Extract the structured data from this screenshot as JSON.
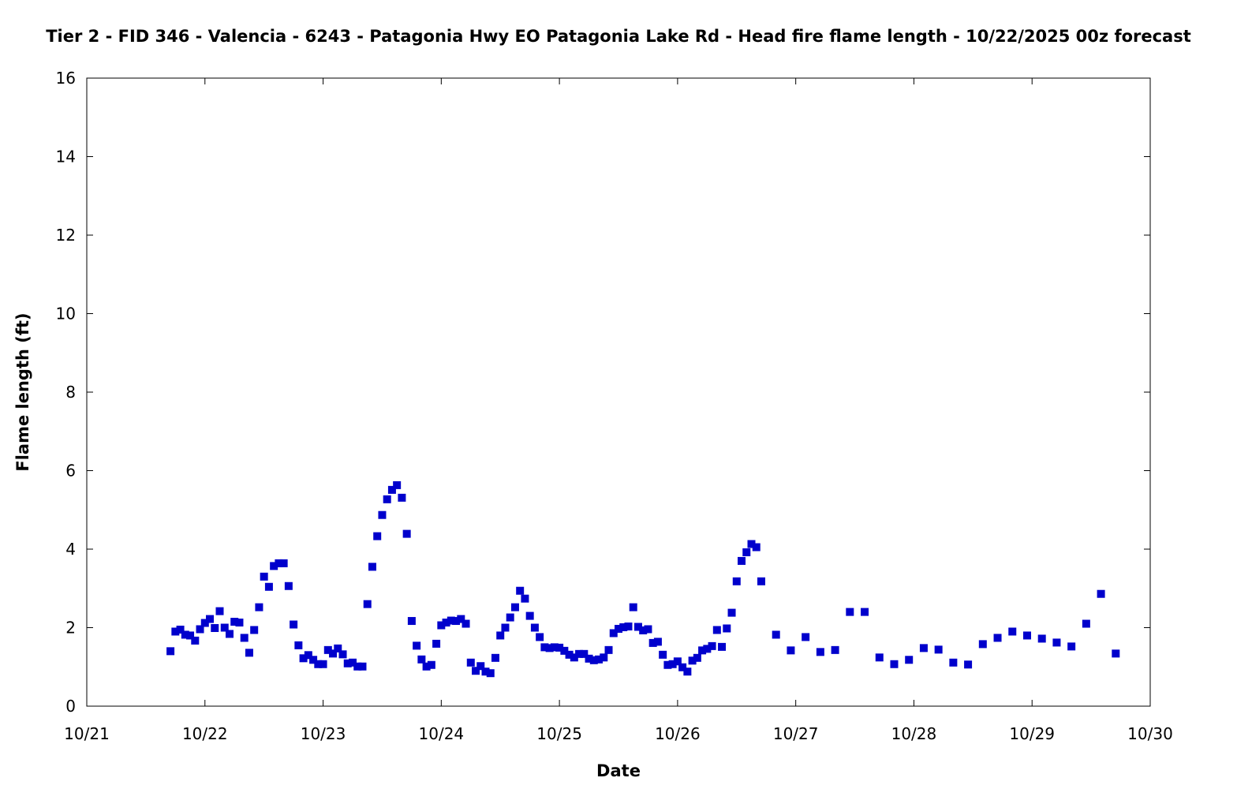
{
  "chart_data": {
    "type": "scatter",
    "title": "Tier 2 - FID 346 - Valencia - 6243 - Patagonia Hwy EO Patagonia Lake Rd - Head fire flame length - 10/22/2025 00z forecast",
    "xlabel": "Date",
    "ylabel": "Flame length (ft)",
    "x_ticks": [
      "10/21",
      "10/22",
      "10/23",
      "10/24",
      "10/25",
      "10/26",
      "10/27",
      "10/28",
      "10/29",
      "10/30"
    ],
    "y_ticks": [
      "0",
      "2",
      "4",
      "6",
      "8",
      "10",
      "12",
      "14",
      "16"
    ],
    "xlim": [
      "10/21",
      "10/30"
    ],
    "ylim": [
      0,
      16
    ],
    "grid": false,
    "marker_color": "#0000cc",
    "series": [
      {
        "points": [
          [
            "10/21 17:00",
            1.4
          ],
          [
            "10/21 18:00",
            1.9
          ],
          [
            "10/21 19:00",
            1.95
          ],
          [
            "10/21 20:00",
            1.82
          ],
          [
            "10/21 21:00",
            1.8
          ],
          [
            "10/21 22:00",
            1.67
          ],
          [
            "10/21 23:00",
            1.96
          ],
          [
            "10/22 00:00",
            2.12
          ],
          [
            "10/22 01:00",
            2.22
          ],
          [
            "10/22 02:00",
            1.99
          ],
          [
            "10/22 03:00",
            2.42
          ],
          [
            "10/22 04:00",
            2.0
          ],
          [
            "10/22 05:00",
            1.84
          ],
          [
            "10/22 06:00",
            2.15
          ],
          [
            "10/22 07:00",
            2.13
          ],
          [
            "10/22 08:00",
            1.74
          ],
          [
            "10/22 09:00",
            1.36
          ],
          [
            "10/22 10:00",
            1.94
          ],
          [
            "10/22 11:00",
            2.52
          ],
          [
            "10/22 12:00",
            3.3
          ],
          [
            "10/22 13:00",
            3.04
          ],
          [
            "10/22 14:00",
            3.57
          ],
          [
            "10/22 15:00",
            3.64
          ],
          [
            "10/22 16:00",
            3.64
          ],
          [
            "10/22 17:00",
            3.06
          ],
          [
            "10/22 18:00",
            2.08
          ],
          [
            "10/22 19:00",
            1.55
          ],
          [
            "10/22 20:00",
            1.22
          ],
          [
            "10/22 21:00",
            1.3
          ],
          [
            "10/22 22:00",
            1.18
          ],
          [
            "10/22 23:00",
            1.07
          ],
          [
            "10/23 00:00",
            1.07
          ],
          [
            "10/23 01:00",
            1.43
          ],
          [
            "10/23 02:00",
            1.34
          ],
          [
            "10/23 03:00",
            1.47
          ],
          [
            "10/23 04:00",
            1.32
          ],
          [
            "10/23 05:00",
            1.09
          ],
          [
            "10/23 06:00",
            1.11
          ],
          [
            "10/23 07:00",
            1.01
          ],
          [
            "10/23 08:00",
            1.01
          ],
          [
            "10/23 09:00",
            2.6
          ],
          [
            "10/23 10:00",
            3.55
          ],
          [
            "10/23 11:00",
            4.33
          ],
          [
            "10/23 12:00",
            4.87
          ],
          [
            "10/23 13:00",
            5.27
          ],
          [
            "10/23 14:00",
            5.51
          ],
          [
            "10/23 15:00",
            5.63
          ],
          [
            "10/23 16:00",
            5.31
          ],
          [
            "10/23 17:00",
            4.39
          ],
          [
            "10/23 18:00",
            2.17
          ],
          [
            "10/23 19:00",
            1.54
          ],
          [
            "10/23 20:00",
            1.19
          ],
          [
            "10/23 21:00",
            1.01
          ],
          [
            "10/23 22:00",
            1.05
          ],
          [
            "10/23 23:00",
            1.59
          ],
          [
            "10/24 00:00",
            2.06
          ],
          [
            "10/24 01:00",
            2.13
          ],
          [
            "10/24 02:00",
            2.18
          ],
          [
            "10/24 03:00",
            2.17
          ],
          [
            "10/24 04:00",
            2.22
          ],
          [
            "10/24 05:00",
            2.1
          ],
          [
            "10/24 06:00",
            1.11
          ],
          [
            "10/24 07:00",
            0.9
          ],
          [
            "10/24 08:00",
            1.02
          ],
          [
            "10/24 09:00",
            0.88
          ],
          [
            "10/24 10:00",
            0.84
          ],
          [
            "10/24 11:00",
            1.23
          ],
          [
            "10/24 12:00",
            1.8
          ],
          [
            "10/24 13:00",
            2.0
          ],
          [
            "10/24 14:00",
            2.26
          ],
          [
            "10/24 15:00",
            2.52
          ],
          [
            "10/24 16:00",
            2.94
          ],
          [
            "10/24 17:00",
            2.74
          ],
          [
            "10/24 18:00",
            2.3
          ],
          [
            "10/24 19:00",
            2.0
          ],
          [
            "10/24 20:00",
            1.76
          ],
          [
            "10/24 21:00",
            1.5
          ],
          [
            "10/24 22:00",
            1.48
          ],
          [
            "10/24 23:00",
            1.5
          ],
          [
            "10/25 00:00",
            1.49
          ],
          [
            "10/25 01:00",
            1.41
          ],
          [
            "10/25 02:00",
            1.31
          ],
          [
            "10/25 03:00",
            1.24
          ],
          [
            "10/25 04:00",
            1.33
          ],
          [
            "10/25 05:00",
            1.33
          ],
          [
            "10/25 06:00",
            1.21
          ],
          [
            "10/25 07:00",
            1.17
          ],
          [
            "10/25 08:00",
            1.19
          ],
          [
            "10/25 09:00",
            1.24
          ],
          [
            "10/25 10:00",
            1.43
          ],
          [
            "10/25 11:00",
            1.86
          ],
          [
            "10/25 12:00",
            1.97
          ],
          [
            "10/25 13:00",
            2.01
          ],
          [
            "10/25 14:00",
            2.03
          ],
          [
            "10/25 15:00",
            2.52
          ],
          [
            "10/25 16:00",
            2.02
          ],
          [
            "10/25 17:00",
            1.93
          ],
          [
            "10/25 18:00",
            1.96
          ],
          [
            "10/25 19:00",
            1.61
          ],
          [
            "10/25 20:00",
            1.64
          ],
          [
            "10/25 21:00",
            1.31
          ],
          [
            "10/25 22:00",
            1.05
          ],
          [
            "10/25 23:00",
            1.07
          ],
          [
            "10/26 00:00",
            1.14
          ],
          [
            "10/26 01:00",
            0.99
          ],
          [
            "10/26 02:00",
            0.88
          ],
          [
            "10/26 03:00",
            1.16
          ],
          [
            "10/26 04:00",
            1.23
          ],
          [
            "10/26 05:00",
            1.42
          ],
          [
            "10/26 06:00",
            1.46
          ],
          [
            "10/26 07:00",
            1.53
          ],
          [
            "10/26 08:00",
            1.94
          ],
          [
            "10/26 09:00",
            1.51
          ],
          [
            "10/26 10:00",
            1.98
          ],
          [
            "10/26 11:00",
            2.38
          ],
          [
            "10/26 12:00",
            3.18
          ],
          [
            "10/26 13:00",
            3.7
          ],
          [
            "10/26 14:00",
            3.92
          ],
          [
            "10/26 15:00",
            4.13
          ],
          [
            "10/26 16:00",
            4.05
          ],
          [
            "10/26 17:00",
            3.18
          ],
          [
            "10/26 20:00",
            1.82
          ],
          [
            "10/26 23:00",
            1.42
          ],
          [
            "10/27 02:00",
            1.76
          ],
          [
            "10/27 05:00",
            1.38
          ],
          [
            "10/27 08:00",
            1.43
          ],
          [
            "10/27 11:00",
            2.4
          ],
          [
            "10/27 14:00",
            2.4
          ],
          [
            "10/27 17:00",
            1.24
          ],
          [
            "10/27 20:00",
            1.07
          ],
          [
            "10/27 23:00",
            1.18
          ],
          [
            "10/28 02:00",
            1.48
          ],
          [
            "10/28 05:00",
            1.44
          ],
          [
            "10/28 08:00",
            1.11
          ],
          [
            "10/28 11:00",
            1.06
          ],
          [
            "10/28 14:00",
            1.58
          ],
          [
            "10/28 17:00",
            1.74
          ],
          [
            "10/28 20:00",
            1.9
          ],
          [
            "10/28 23:00",
            1.8
          ],
          [
            "10/29 02:00",
            1.72
          ],
          [
            "10/29 05:00",
            1.62
          ],
          [
            "10/29 08:00",
            1.52
          ],
          [
            "10/29 11:00",
            2.1
          ],
          [
            "10/29 14:00",
            2.86
          ],
          [
            "10/29 17:00",
            1.34
          ]
        ]
      }
    ]
  }
}
